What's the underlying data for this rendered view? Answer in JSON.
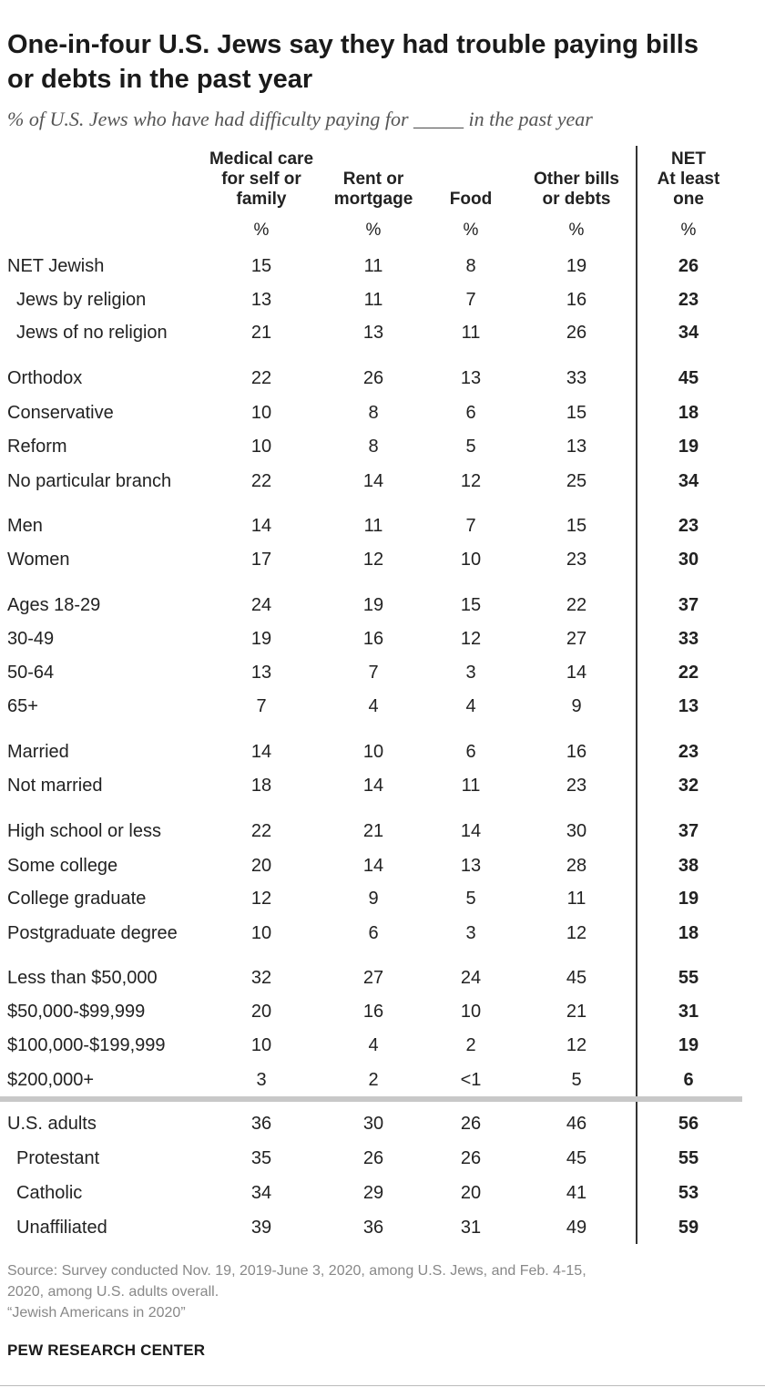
{
  "title_line1": "One-in-four U.S. Jews say they had trouble paying bills",
  "title_line2": "or debts in the past year",
  "subtitle": "% of U.S. Jews who have had difficulty paying for _____ in the past year",
  "columns": [
    {
      "header": "Medical care\nfor self or\nfamily",
      "unit": "%"
    },
    {
      "header": "Rent or\nmortgage",
      "unit": "%"
    },
    {
      "header": "Food",
      "unit": "%"
    },
    {
      "header": "Other bills\nor debts",
      "unit": "%"
    },
    {
      "header": "NET\nAt least\none",
      "unit": "%"
    }
  ],
  "chart_data": {
    "type": "table",
    "title": "One-in-four U.S. Jews say they had trouble paying bills or debts in the past year",
    "subtitle": "% of U.S. Jews who have had difficulty paying for _____ in the past year",
    "columns": [
      "Medical care for self or family",
      "Rent or mortgage",
      "Food",
      "Other bills or debts",
      "NET At least one"
    ],
    "rows": [
      {
        "label": "NET Jewish",
        "indent": false,
        "values": [
          "15",
          "11",
          "8",
          "19",
          "26"
        ]
      },
      {
        "label": "Jews by religion",
        "indent": true,
        "values": [
          "13",
          "11",
          "7",
          "16",
          "23"
        ]
      },
      {
        "label": "Jews of no religion",
        "indent": true,
        "values": [
          "21",
          "13",
          "11",
          "26",
          "34"
        ]
      },
      {
        "label": "Orthodox",
        "indent": false,
        "values": [
          "22",
          "26",
          "13",
          "33",
          "45"
        ]
      },
      {
        "label": "Conservative",
        "indent": false,
        "values": [
          "10",
          "8",
          "6",
          "15",
          "18"
        ]
      },
      {
        "label": "Reform",
        "indent": false,
        "values": [
          "10",
          "8",
          "5",
          "13",
          "19"
        ]
      },
      {
        "label": "No particular branch",
        "indent": false,
        "values": [
          "22",
          "14",
          "12",
          "25",
          "34"
        ]
      },
      {
        "label": "Men",
        "indent": false,
        "values": [
          "14",
          "11",
          "7",
          "15",
          "23"
        ]
      },
      {
        "label": "Women",
        "indent": false,
        "values": [
          "17",
          "12",
          "10",
          "23",
          "30"
        ]
      },
      {
        "label": "Ages 18-29",
        "indent": false,
        "values": [
          "24",
          "19",
          "15",
          "22",
          "37"
        ]
      },
      {
        "label": "30-49",
        "indent": false,
        "values": [
          "19",
          "16",
          "12",
          "27",
          "33"
        ]
      },
      {
        "label": "50-64",
        "indent": false,
        "values": [
          "13",
          "7",
          "3",
          "14",
          "22"
        ]
      },
      {
        "label": "65+",
        "indent": false,
        "values": [
          "7",
          "4",
          "4",
          "9",
          "13"
        ]
      },
      {
        "label": "Married",
        "indent": false,
        "values": [
          "14",
          "10",
          "6",
          "16",
          "23"
        ]
      },
      {
        "label": "Not married",
        "indent": false,
        "values": [
          "18",
          "14",
          "11",
          "23",
          "32"
        ]
      },
      {
        "label": "High school or less",
        "indent": false,
        "values": [
          "22",
          "21",
          "14",
          "30",
          "37"
        ]
      },
      {
        "label": "Some college",
        "indent": false,
        "values": [
          "20",
          "14",
          "13",
          "28",
          "38"
        ]
      },
      {
        "label": "College graduate",
        "indent": false,
        "values": [
          "12",
          "9",
          "5",
          "11",
          "19"
        ]
      },
      {
        "label": "Postgraduate degree",
        "indent": false,
        "values": [
          "10",
          "6",
          "3",
          "12",
          "18"
        ]
      },
      {
        "label": "Less than $50,000",
        "indent": false,
        "values": [
          "32",
          "27",
          "24",
          "45",
          "55"
        ]
      },
      {
        "label": "$50,000-$99,999",
        "indent": false,
        "values": [
          "20",
          "16",
          "10",
          "21",
          "31"
        ]
      },
      {
        "label": "$100,000-$199,999",
        "indent": false,
        "values": [
          "10",
          "4",
          "2",
          "12",
          "19"
        ]
      },
      {
        "label": "$200,000+",
        "indent": false,
        "values": [
          "3",
          "2",
          "<1",
          "5",
          "6"
        ]
      },
      {
        "label": "U.S. adults",
        "indent": false,
        "values": [
          "36",
          "30",
          "26",
          "46",
          "56"
        ]
      },
      {
        "label": "Protestant",
        "indent": true,
        "values": [
          "35",
          "26",
          "26",
          "45",
          "55"
        ]
      },
      {
        "label": "Catholic",
        "indent": true,
        "values": [
          "34",
          "29",
          "20",
          "41",
          "53"
        ]
      },
      {
        "label": "Unaffiliated",
        "indent": true,
        "values": [
          "39",
          "36",
          "31",
          "49",
          "59"
        ]
      }
    ]
  },
  "source_lines": [
    "Source: Survey conducted Nov. 19, 2019-June 3, 2020, among U.S. Jews, and Feb. 4-15,",
    "2020, among U.S. adults overall.",
    "“Jewish Americans in 2020”"
  ],
  "brand": "PEW RESEARCH CENTER"
}
